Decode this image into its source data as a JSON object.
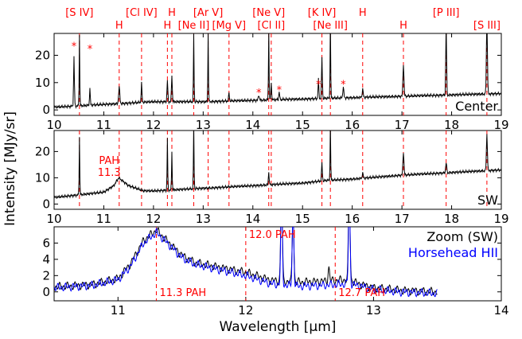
{
  "chart_data": [
    {
      "panel": "top",
      "type": "line",
      "panel_label": "Center",
      "xlim": [
        10,
        19
      ],
      "ylim": [
        -2,
        28
      ],
      "xticks": [
        10,
        11,
        12,
        13,
        14,
        15,
        16,
        17,
        18,
        19
      ],
      "yticks": [
        0,
        10,
        20
      ],
      "line_markers": [
        {
          "label": "[S IV]",
          "x": 10.51
        },
        {
          "label": "H",
          "x": 11.31
        },
        {
          "label": "[Cl IV]",
          "x": 11.76
        },
        {
          "label": "H",
          "x": 12.28
        },
        {
          "label": "H",
          "x": 12.37
        },
        {
          "label": "[Ne II]",
          "x": 12.81
        },
        {
          "label": "[Ar V]",
          "x": 13.1
        },
        {
          "label": "[Mg V]",
          "x": 13.52
        },
        {
          "label": "[Ne V]",
          "x": 14.32
        },
        {
          "label": "[Cl II]",
          "x": 14.37
        },
        {
          "label": "[K IV]",
          "x": 15.39
        },
        {
          "label": "[Ne III]",
          "x": 15.56
        },
        {
          "label": "H",
          "x": 16.21
        },
        {
          "label": "H",
          "x": 17.03
        },
        {
          "label": "[P III]",
          "x": 17.89
        },
        {
          "label": "[S III]",
          "x": 18.71
        }
      ],
      "artifacts": [
        {
          "label": "*",
          "x": 10.4,
          "y": 22
        },
        {
          "label": "*",
          "x": 10.72,
          "y": 21
        },
        {
          "label": "*",
          "x": 14.12,
          "y": 5
        },
        {
          "label": "*",
          "x": 14.53,
          "y": 6
        },
        {
          "label": "*",
          "x": 15.32,
          "y": 8
        },
        {
          "label": "*",
          "x": 15.82,
          "y": 8
        }
      ],
      "series": [
        {
          "color": "#000000",
          "baseline": [
            [
              10.0,
              1.0
            ],
            [
              10.5,
              1.5
            ],
            [
              11.0,
              2.0
            ],
            [
              11.5,
              2.5
            ],
            [
              12.0,
              3.0
            ],
            [
              13.0,
              3.0
            ],
            [
              14.0,
              3.5
            ],
            [
              15.0,
              4.0
            ],
            [
              16.0,
              4.5
            ],
            [
              17.0,
              5.0
            ],
            [
              18.0,
              5.5
            ],
            [
              19.0,
              6.0
            ]
          ],
          "peaks": [
            [
              10.4,
              18,
              0.008
            ],
            [
              10.51,
              26,
              0.006
            ],
            [
              10.72,
              6,
              0.008
            ],
            [
              11.31,
              6,
              0.012
            ],
            [
              11.76,
              7,
              0.008
            ],
            [
              12.28,
              8,
              0.008
            ],
            [
              12.37,
              10,
              0.008
            ],
            [
              12.81,
              25,
              0.006
            ],
            [
              13.1,
              25,
              0.006
            ],
            [
              13.52,
              3,
              0.008
            ],
            [
              14.12,
              2,
              0.01
            ],
            [
              14.32,
              26,
              0.006
            ],
            [
              14.37,
              6,
              0.008
            ],
            [
              14.53,
              3,
              0.008
            ],
            [
              15.32,
              7,
              0.008
            ],
            [
              15.39,
              15,
              0.008
            ],
            [
              15.56,
              30,
              0.006
            ],
            [
              15.82,
              4,
              0.01
            ],
            [
              16.21,
              3,
              0.01
            ],
            [
              17.03,
              12,
              0.01
            ],
            [
              17.89,
              27,
              0.008
            ],
            [
              18.71,
              28,
              0.01
            ]
          ]
        }
      ]
    },
    {
      "panel": "middle",
      "type": "line",
      "panel_label": "SW",
      "annotation": [
        "PAH",
        "11.3"
      ],
      "xlim": [
        10,
        19
      ],
      "ylim": [
        -2,
        28
      ],
      "xticks": [
        10,
        11,
        12,
        13,
        14,
        15,
        16,
        17,
        18,
        19
      ],
      "yticks": [
        0,
        10,
        20
      ],
      "series": [
        {
          "color": "#000000",
          "baseline": [
            [
              10.0,
              2.5
            ],
            [
              10.5,
              3.5
            ],
            [
              11.0,
              4.5
            ],
            [
              11.2,
              7.0
            ],
            [
              11.3,
              10.0
            ],
            [
              11.5,
              7.0
            ],
            [
              11.8,
              5.0
            ],
            [
              12.0,
              5.0
            ],
            [
              13.0,
              6.0
            ],
            [
              14.0,
              7.0
            ],
            [
              14.5,
              7.5
            ],
            [
              15.0,
              8.0
            ],
            [
              15.5,
              9.0
            ],
            [
              16.0,
              9.5
            ],
            [
              17.0,
              11.0
            ],
            [
              18.0,
              12.0
            ],
            [
              19.0,
              13.0
            ]
          ],
          "peaks": [
            [
              10.51,
              22,
              0.006
            ],
            [
              12.28,
              20,
              0.006
            ],
            [
              12.37,
              15,
              0.006
            ],
            [
              12.81,
              25,
              0.006
            ],
            [
              14.32,
              5,
              0.008
            ],
            [
              15.39,
              7,
              0.008
            ],
            [
              15.56,
              22,
              0.006
            ],
            [
              16.21,
              2,
              0.01
            ],
            [
              17.03,
              9,
              0.01
            ],
            [
              17.89,
              4,
              0.01
            ],
            [
              18.71,
              14,
              0.01
            ]
          ]
        }
      ]
    },
    {
      "panel": "bottom",
      "type": "line",
      "xlim": [
        10.5,
        14
      ],
      "ylim": [
        -1.1,
        8
      ],
      "xticks": [
        11,
        12,
        13,
        14
      ],
      "yticks": [
        0,
        2,
        4,
        6
      ],
      "xlabel": "Wavelength [μm]",
      "ylabel": "Intensity [MJy/sr]",
      "legend": {
        "position": "top-right",
        "items": [
          "Zoom (SW)",
          "Horsehead HII"
        ]
      },
      "pah_markers": [
        {
          "label": "11.3 PAH",
          "x": 11.3
        },
        {
          "label": "12.0 PAH",
          "x": 12.0
        },
        {
          "label": "12.7 PAH",
          "x": 12.7
        }
      ],
      "series": [
        {
          "name": "Zoom (SW)",
          "color": "#000000",
          "baseline": [
            [
              10.5,
              0.6
            ],
            [
              10.8,
              0.9
            ],
            [
              11.0,
              1.6
            ],
            [
              11.1,
              3.5
            ],
            [
              11.2,
              6.3
            ],
            [
              11.3,
              7.6
            ],
            [
              11.4,
              6.0
            ],
            [
              11.5,
              4.5
            ],
            [
              11.6,
              3.6
            ],
            [
              11.8,
              3.0
            ],
            [
              12.0,
              2.4
            ],
            [
              12.2,
              1.4
            ],
            [
              12.4,
              1.2
            ],
            [
              12.6,
              1.3
            ],
            [
              12.8,
              1.5
            ],
            [
              12.9,
              0.9
            ],
            [
              13.0,
              0.5
            ],
            [
              13.2,
              0.2
            ],
            [
              13.5,
              0.0
            ]
          ],
          "peaks": [
            [
              12.28,
              12,
              0.006
            ],
            [
              12.37,
              9,
              0.006
            ],
            [
              12.65,
              1.6,
              0.006
            ],
            [
              12.81,
              12,
              0.006
            ]
          ]
        },
        {
          "name": "Horsehead HII",
          "color": "#0000ff",
          "baseline": [
            [
              10.5,
              0.5
            ],
            [
              10.8,
              0.8
            ],
            [
              11.0,
              1.5
            ],
            [
              11.1,
              3.2
            ],
            [
              11.2,
              6.0
            ],
            [
              11.3,
              7.3
            ],
            [
              11.4,
              5.8
            ],
            [
              11.5,
              4.2
            ],
            [
              11.6,
              3.4
            ],
            [
              11.8,
              2.7
            ],
            [
              12.0,
              2.0
            ],
            [
              12.2,
              1.0
            ],
            [
              12.4,
              0.7
            ],
            [
              12.6,
              0.8
            ],
            [
              12.8,
              1.0
            ],
            [
              12.9,
              0.7
            ],
            [
              13.0,
              0.3
            ],
            [
              13.2,
              0.0
            ],
            [
              13.5,
              -0.2
            ]
          ],
          "peaks": [
            [
              12.28,
              12,
              0.006
            ],
            [
              12.37,
              10,
              0.006
            ],
            [
              12.81,
              12,
              0.006
            ]
          ]
        }
      ]
    }
  ]
}
